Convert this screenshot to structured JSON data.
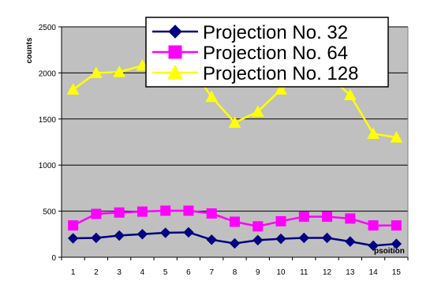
{
  "chart_data": {
    "type": "line",
    "xlabel": "psoition",
    "ylabel": "counts",
    "x": [
      1,
      2,
      3,
      4,
      5,
      6,
      7,
      8,
      9,
      10,
      11,
      12,
      13,
      14,
      15
    ],
    "ylim": [
      0,
      2500
    ],
    "yticks": [
      0,
      500,
      1000,
      1500,
      2000,
      2500
    ],
    "grid": true,
    "legend_position": "top-right",
    "plot_background": "#c0c0c0",
    "series": [
      {
        "name": "Projection No. 32",
        "color": "#000080",
        "marker": "diamond",
        "values": [
          205,
          210,
          235,
          250,
          265,
          270,
          190,
          150,
          185,
          200,
          210,
          210,
          170,
          125,
          145
        ]
      },
      {
        "name": "Projection No.  64",
        "color": "#ff00ff",
        "marker": "square",
        "values": [
          345,
          470,
          485,
          495,
          505,
          505,
          475,
          385,
          335,
          390,
          440,
          440,
          420,
          345,
          345
        ]
      },
      {
        "name": "Projection No. 128",
        "color": "#ffff00",
        "marker": "triangle",
        "values": [
          1820,
          2000,
          2010,
          2080,
          2100,
          2090,
          1740,
          1460,
          1580,
          1820,
          1990,
          1980,
          1760,
          1340,
          1300
        ]
      }
    ]
  }
}
